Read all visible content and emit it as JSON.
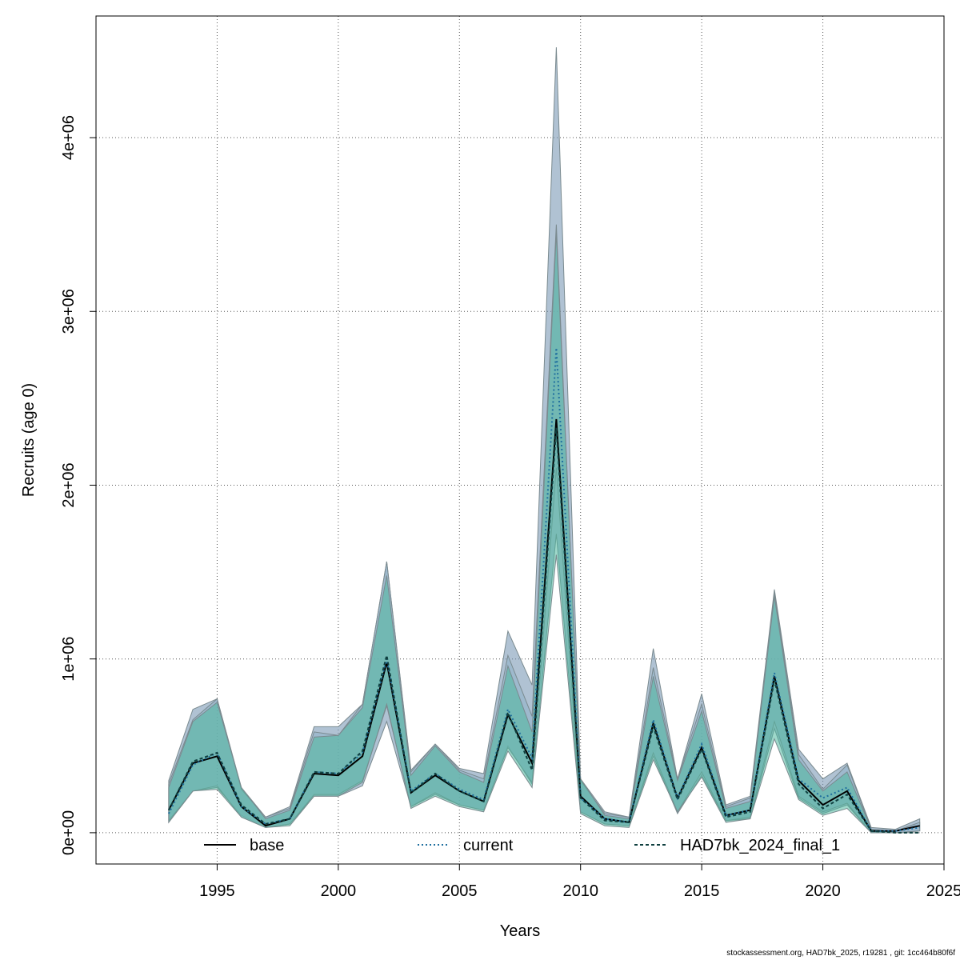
{
  "chart_data": {
    "type": "area",
    "title": "",
    "xlabel": "Years",
    "ylabel": "Recruits (age 0)",
    "xlim": [
      1990,
      2025
    ],
    "ylim": [
      -180000,
      4700000
    ],
    "x_ticks": [
      1995,
      2000,
      2005,
      2010,
      2015,
      2020,
      2025
    ],
    "y_ticks": [
      0,
      1000000,
      2000000,
      3000000,
      4000000
    ],
    "y_tick_labels": [
      "0e+00",
      "1e+06",
      "2e+06",
      "3e+06",
      "4e+06"
    ],
    "grid": true,
    "legend_position": "bottom",
    "years": [
      1993,
      1994,
      1995,
      1996,
      1997,
      1998,
      1999,
      2000,
      2001,
      2002,
      2003,
      2004,
      2005,
      2006,
      2007,
      2008,
      2009,
      2010,
      2011,
      2012,
      2013,
      2014,
      2015,
      2016,
      2017,
      2018,
      2019,
      2020,
      2021,
      2022,
      2023,
      2024
    ],
    "series": [
      {
        "name": "base",
        "line_style": "solid",
        "color": "#000000",
        "band_color": "#6f8faf",
        "values": [
          130000,
          400000,
          440000,
          150000,
          40000,
          80000,
          340000,
          330000,
          440000,
          980000,
          230000,
          330000,
          240000,
          180000,
          680000,
          400000,
          2380000,
          210000,
          80000,
          60000,
          630000,
          200000,
          490000,
          100000,
          130000,
          900000,
          300000,
          160000,
          240000,
          10000,
          10000,
          40000
        ],
        "lower": [
          60000,
          240000,
          260000,
          100000,
          30000,
          50000,
          210000,
          210000,
          270000,
          640000,
          150000,
          220000,
          160000,
          130000,
          500000,
          280000,
          1720000,
          120000,
          50000,
          40000,
          440000,
          110000,
          330000,
          70000,
          80000,
          600000,
          200000,
          110000,
          160000,
          0,
          0,
          10000
        ],
        "upper": [
          300000,
          710000,
          770000,
          260000,
          90000,
          150000,
          610000,
          610000,
          740000,
          1560000,
          360000,
          510000,
          370000,
          340000,
          1160000,
          850000,
          4520000,
          310000,
          120000,
          90000,
          1060000,
          310000,
          800000,
          160000,
          210000,
          1400000,
          480000,
          310000,
          400000,
          30000,
          20000,
          80000
        ]
      },
      {
        "name": "current",
        "line_style": "dotted",
        "color": "#1f6f9f",
        "band_color": "#8fb2c8",
        "values": [
          110000,
          390000,
          460000,
          150000,
          50000,
          80000,
          350000,
          340000,
          460000,
          1000000,
          240000,
          340000,
          250000,
          190000,
          710000,
          430000,
          2790000,
          200000,
          80000,
          60000,
          650000,
          200000,
          510000,
          100000,
          130000,
          920000,
          310000,
          200000,
          260000,
          10000,
          10000,
          30000
        ],
        "lower": [
          70000,
          240000,
          270000,
          90000,
          30000,
          50000,
          220000,
          220000,
          300000,
          730000,
          150000,
          230000,
          160000,
          130000,
          490000,
          290000,
          2100000,
          120000,
          50000,
          40000,
          460000,
          120000,
          350000,
          70000,
          90000,
          640000,
          210000,
          120000,
          170000,
          0,
          0,
          10000
        ],
        "upper": [
          280000,
          650000,
          770000,
          250000,
          90000,
          140000,
          580000,
          560000,
          740000,
          1560000,
          350000,
          510000,
          360000,
          310000,
          1020000,
          670000,
          3500000,
          300000,
          110000,
          90000,
          950000,
          310000,
          740000,
          150000,
          200000,
          1380000,
          450000,
          250000,
          390000,
          20000,
          10000,
          60000
        ]
      },
      {
        "name": "HAD7bk_2024_final_1",
        "line_style": "dashed",
        "color": "#0f3f3f",
        "band_color": "#4fb89f",
        "values": [
          130000,
          410000,
          460000,
          160000,
          50000,
          80000,
          350000,
          340000,
          470000,
          1020000,
          230000,
          340000,
          240000,
          180000,
          690000,
          360000,
          2330000,
          200000,
          70000,
          60000,
          610000,
          190000,
          480000,
          90000,
          120000,
          880000,
          280000,
          140000,
          220000,
          10000,
          0,
          0
        ],
        "lower": [
          60000,
          240000,
          250000,
          90000,
          30000,
          40000,
          210000,
          210000,
          290000,
          740000,
          140000,
          210000,
          150000,
          120000,
          470000,
          260000,
          1600000,
          110000,
          40000,
          30000,
          420000,
          120000,
          320000,
          60000,
          80000,
          540000,
          190000,
          100000,
          140000,
          0,
          0,
          0
        ],
        "upper": [
          260000,
          640000,
          750000,
          260000,
          80000,
          130000,
          550000,
          560000,
          720000,
          1480000,
          330000,
          500000,
          350000,
          290000,
          960000,
          580000,
          3450000,
          310000,
          100000,
          80000,
          900000,
          300000,
          700000,
          140000,
          180000,
          1360000,
          420000,
          240000,
          350000,
          20000,
          0,
          0
        ]
      }
    ]
  },
  "footer_text": "stockassessment.org, HAD7bk_2025, r19281 , git: 1cc464b80f6f"
}
